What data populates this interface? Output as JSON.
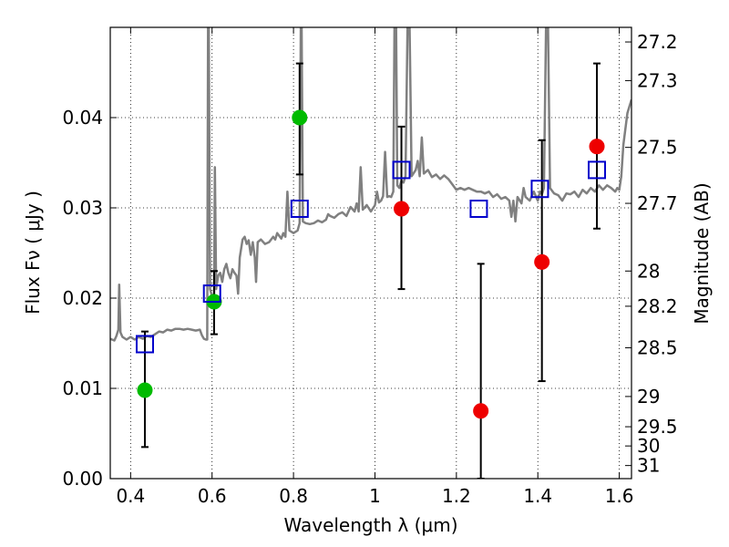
{
  "chart_data": {
    "type": "scatter",
    "xlabel": "Wavelength  λ (μm)",
    "ylabel": "Flux  Fν  ( μJy )",
    "y2label": "Magnitude (AB)",
    "xlim": [
      0.35,
      1.63
    ],
    "ylim": [
      0.0,
      0.05
    ],
    "grid": true,
    "x_ticks": [
      0.4,
      0.6,
      0.8,
      1.0,
      1.2,
      1.4,
      1.6
    ],
    "x_tick_labels": [
      "0.4",
      "0.6",
      "0.8",
      "1",
      "1.2",
      "1.4",
      "1.6"
    ],
    "y_ticks": [
      0.0,
      0.01,
      0.02,
      0.03,
      0.04
    ],
    "y_tick_labels": [
      "0.00",
      "0.01",
      "0.02",
      "0.03",
      "0.04"
    ],
    "mag_ticks": [
      {
        "label": "27.2",
        "flux": 0.04838
      },
      {
        "label": "27.3",
        "flux": 0.0441
      },
      {
        "label": "27.5",
        "flux": 0.0367
      },
      {
        "label": "27.7",
        "flux": 0.0305
      },
      {
        "label": "28",
        "flux": 0.023
      },
      {
        "label": "28.2",
        "flux": 0.0191
      },
      {
        "label": "28.5",
        "flux": 0.0145
      },
      {
        "label": "29",
        "flux": 0.0091
      },
      {
        "label": "29.5",
        "flux": 0.00575
      },
      {
        "label": "30",
        "flux": 0.00362
      },
      {
        "label": "31",
        "flux": 0.00145
      }
    ],
    "series": [
      {
        "type": "line",
        "color": "#808080",
        "points": [
          [
            0.35,
            0.0155
          ],
          [
            0.36,
            0.0153
          ],
          [
            0.365,
            0.0158
          ],
          [
            0.37,
            0.0165
          ],
          [
            0.372,
            0.0215
          ],
          [
            0.375,
            0.0162
          ],
          [
            0.38,
            0.0157
          ],
          [
            0.39,
            0.0154
          ],
          [
            0.4,
            0.0157
          ],
          [
            0.41,
            0.0154
          ],
          [
            0.42,
            0.0157
          ],
          [
            0.43,
            0.0155
          ],
          [
            0.44,
            0.0158
          ],
          [
            0.45,
            0.0157
          ],
          [
            0.46,
            0.016
          ],
          [
            0.47,
            0.0163
          ],
          [
            0.48,
            0.0162
          ],
          [
            0.49,
            0.0165
          ],
          [
            0.5,
            0.0164
          ],
          [
            0.51,
            0.0166
          ],
          [
            0.52,
            0.0166
          ],
          [
            0.53,
            0.0165
          ],
          [
            0.54,
            0.0166
          ],
          [
            0.55,
            0.0165
          ],
          [
            0.56,
            0.0164
          ],
          [
            0.57,
            0.0165
          ],
          [
            0.575,
            0.0159
          ],
          [
            0.58,
            0.0155
          ],
          [
            0.585,
            0.0154
          ],
          [
            0.588,
            0.0154
          ],
          [
            0.59,
            0.05
          ],
          [
            0.592,
            0.05
          ],
          [
            0.595,
            0.021
          ],
          [
            0.6,
            0.0202
          ],
          [
            0.605,
            0.0205
          ],
          [
            0.607,
            0.0345
          ],
          [
            0.61,
            0.021
          ],
          [
            0.615,
            0.0225
          ],
          [
            0.62,
            0.0228
          ],
          [
            0.625,
            0.0218
          ],
          [
            0.63,
            0.0232
          ],
          [
            0.635,
            0.0238
          ],
          [
            0.64,
            0.0228
          ],
          [
            0.645,
            0.0222
          ],
          [
            0.65,
            0.0232
          ],
          [
            0.655,
            0.0228
          ],
          [
            0.66,
            0.0225
          ],
          [
            0.664,
            0.0205
          ],
          [
            0.668,
            0.0245
          ],
          [
            0.675,
            0.0265
          ],
          [
            0.68,
            0.0268
          ],
          [
            0.685,
            0.026
          ],
          [
            0.69,
            0.0264
          ],
          [
            0.695,
            0.0248
          ],
          [
            0.7,
            0.0262
          ],
          [
            0.705,
            0.0245
          ],
          [
            0.708,
            0.0218
          ],
          [
            0.712,
            0.0262
          ],
          [
            0.72,
            0.0265
          ],
          [
            0.73,
            0.026
          ],
          [
            0.74,
            0.0262
          ],
          [
            0.75,
            0.0268
          ],
          [
            0.755,
            0.0265
          ],
          [
            0.76,
            0.0272
          ],
          [
            0.77,
            0.0266
          ],
          [
            0.775,
            0.0272
          ],
          [
            0.78,
            0.0268
          ],
          [
            0.785,
            0.0318
          ],
          [
            0.79,
            0.0275
          ],
          [
            0.8,
            0.0272
          ],
          [
            0.81,
            0.0275
          ],
          [
            0.815,
            0.0283
          ],
          [
            0.818,
            0.05
          ],
          [
            0.82,
            0.05
          ],
          [
            0.823,
            0.0285
          ],
          [
            0.83,
            0.0283
          ],
          [
            0.84,
            0.0282
          ],
          [
            0.85,
            0.0283
          ],
          [
            0.86,
            0.0286
          ],
          [
            0.87,
            0.0284
          ],
          [
            0.88,
            0.0287
          ],
          [
            0.885,
            0.0293
          ],
          [
            0.89,
            0.0291
          ],
          [
            0.9,
            0.0289
          ],
          [
            0.91,
            0.0293
          ],
          [
            0.92,
            0.0295
          ],
          [
            0.93,
            0.0291
          ],
          [
            0.94,
            0.0301
          ],
          [
            0.95,
            0.0296
          ],
          [
            0.955,
            0.0305
          ],
          [
            0.96,
            0.0296
          ],
          [
            0.965,
            0.0345
          ],
          [
            0.97,
            0.0298
          ],
          [
            0.98,
            0.0303
          ],
          [
            0.99,
            0.0296
          ],
          [
            1.0,
            0.0303
          ],
          [
            1.005,
            0.0318
          ],
          [
            1.01,
            0.0306
          ],
          [
            1.015,
            0.0308
          ],
          [
            1.02,
            0.0313
          ],
          [
            1.025,
            0.0362
          ],
          [
            1.03,
            0.0312
          ],
          [
            1.035,
            0.0313
          ],
          [
            1.04,
            0.0312
          ],
          [
            1.045,
            0.0318
          ],
          [
            1.048,
            0.05
          ],
          [
            1.052,
            0.05
          ],
          [
            1.055,
            0.0325
          ],
          [
            1.06,
            0.0322
          ],
          [
            1.065,
            0.033
          ],
          [
            1.07,
            0.0328
          ],
          [
            1.075,
            0.0335
          ],
          [
            1.08,
            0.05
          ],
          [
            1.085,
            0.05
          ],
          [
            1.09,
            0.0335
          ],
          [
            1.1,
            0.0342
          ],
          [
            1.105,
            0.0352
          ],
          [
            1.11,
            0.0335
          ],
          [
            1.115,
            0.0378
          ],
          [
            1.12,
            0.0338
          ],
          [
            1.13,
            0.0342
          ],
          [
            1.14,
            0.0334
          ],
          [
            1.15,
            0.0337
          ],
          [
            1.16,
            0.0332
          ],
          [
            1.17,
            0.0336
          ],
          [
            1.18,
            0.0332
          ],
          [
            1.19,
            0.0326
          ],
          [
            1.2,
            0.032
          ],
          [
            1.21,
            0.0322
          ],
          [
            1.22,
            0.032
          ],
          [
            1.23,
            0.0322
          ],
          [
            1.24,
            0.032
          ],
          [
            1.25,
            0.0318
          ],
          [
            1.26,
            0.0318
          ],
          [
            1.27,
            0.0316
          ],
          [
            1.28,
            0.0318
          ],
          [
            1.29,
            0.0312
          ],
          [
            1.3,
            0.0315
          ],
          [
            1.31,
            0.031
          ],
          [
            1.32,
            0.0312
          ],
          [
            1.33,
            0.0308
          ],
          [
            1.335,
            0.029
          ],
          [
            1.34,
            0.0308
          ],
          [
            1.345,
            0.0285
          ],
          [
            1.35,
            0.0312
          ],
          [
            1.36,
            0.0305
          ],
          [
            1.365,
            0.0322
          ],
          [
            1.37,
            0.0312
          ],
          [
            1.38,
            0.0308
          ],
          [
            1.39,
            0.0318
          ],
          [
            1.4,
            0.0308
          ],
          [
            1.405,
            0.0318
          ],
          [
            1.41,
            0.0315
          ],
          [
            1.415,
            0.0322
          ],
          [
            1.42,
            0.05
          ],
          [
            1.425,
            0.05
          ],
          [
            1.43,
            0.0322
          ],
          [
            1.44,
            0.0316
          ],
          [
            1.45,
            0.0314
          ],
          [
            1.46,
            0.0308
          ],
          [
            1.47,
            0.0316
          ],
          [
            1.48,
            0.0315
          ],
          [
            1.49,
            0.0318
          ],
          [
            1.5,
            0.0312
          ],
          [
            1.51,
            0.032
          ],
          [
            1.52,
            0.0316
          ],
          [
            1.53,
            0.0322
          ],
          [
            1.54,
            0.0318
          ],
          [
            1.55,
            0.0325
          ],
          [
            1.56,
            0.032
          ],
          [
            1.57,
            0.0325
          ],
          [
            1.58,
            0.0322
          ],
          [
            1.59,
            0.0318
          ],
          [
            1.595,
            0.0322
          ],
          [
            1.6,
            0.032
          ],
          [
            1.605,
            0.0335
          ],
          [
            1.61,
            0.037
          ],
          [
            1.62,
            0.0405
          ],
          [
            1.63,
            0.042
          ]
        ]
      },
      {
        "type": "errorbar",
        "color": "#000000",
        "points": [
          {
            "x": 0.435,
            "low": 0.0035,
            "high": 0.0163
          },
          {
            "x": 0.605,
            "low": 0.016,
            "high": 0.023
          },
          {
            "x": 0.815,
            "low": 0.0337,
            "high": 0.046
          },
          {
            "x": 1.065,
            "low": 0.021,
            "high": 0.039
          },
          {
            "x": 1.26,
            "low": 0.0,
            "high": 0.0238
          },
          {
            "x": 1.41,
            "low": 0.0108,
            "high": 0.0375
          },
          {
            "x": 1.545,
            "low": 0.0277,
            "high": 0.046
          }
        ]
      },
      {
        "type": "scatter",
        "marker": "circle",
        "color": "#00bb00",
        "points": [
          [
            0.435,
            0.0098
          ],
          [
            0.605,
            0.0196
          ],
          [
            0.815,
            0.04
          ]
        ]
      },
      {
        "type": "scatter",
        "marker": "circle",
        "color": "#ee0000",
        "points": [
          [
            1.065,
            0.0299
          ],
          [
            1.26,
            0.0075
          ],
          [
            1.41,
            0.024
          ],
          [
            1.545,
            0.0368
          ]
        ]
      },
      {
        "type": "scatter",
        "marker": "square-open",
        "color": "#0000cc",
        "points": [
          [
            0.435,
            0.0149
          ],
          [
            0.6,
            0.0205
          ],
          [
            0.815,
            0.0299
          ],
          [
            1.065,
            0.0342
          ],
          [
            1.255,
            0.0299
          ],
          [
            1.405,
            0.0321
          ],
          [
            1.545,
            0.0342
          ]
        ]
      }
    ]
  }
}
